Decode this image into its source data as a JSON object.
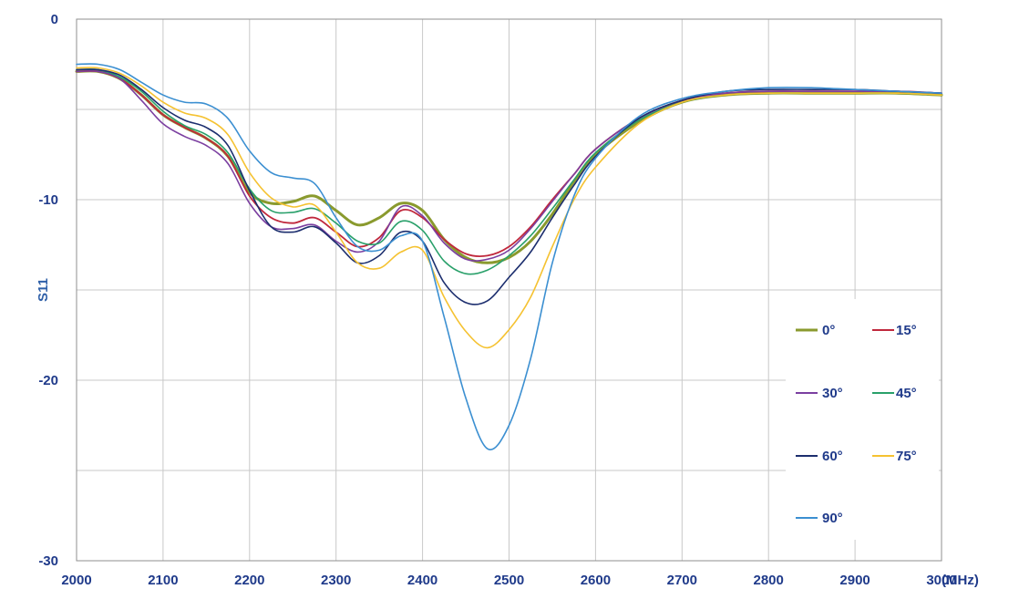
{
  "chart_data": {
    "type": "line",
    "xlabel": "(MHz)",
    "ylabel": "S11",
    "xlim": [
      2000,
      3000
    ],
    "ylim": [
      -30,
      0
    ],
    "x_ticks": [
      2000,
      2100,
      2200,
      2300,
      2400,
      2500,
      2600,
      2700,
      2800,
      2900,
      3000
    ],
    "y_ticks": [
      0,
      -10,
      -20,
      -30
    ],
    "grid": true,
    "legend_position": "right",
    "x": [
      2000,
      2025,
      2050,
      2075,
      2100,
      2125,
      2150,
      2175,
      2200,
      2225,
      2250,
      2275,
      2300,
      2325,
      2350,
      2375,
      2400,
      2425,
      2450,
      2475,
      2500,
      2525,
      2550,
      2575,
      2600,
      2650,
      2700,
      2750,
      2800,
      2850,
      2900,
      2950,
      3000
    ],
    "series": [
      {
        "name": "0°",
        "color": "#8a9a2e",
        "width": 3.0,
        "values": [
          -2.9,
          -2.9,
          -3.3,
          -4.2,
          -5.3,
          -6.0,
          -6.6,
          -7.6,
          -9.6,
          -10.2,
          -10.1,
          -9.8,
          -10.6,
          -11.4,
          -11.0,
          -10.2,
          -10.6,
          -12.2,
          -13.2,
          -13.5,
          -13.2,
          -12.3,
          -10.8,
          -9.0,
          -7.5,
          -5.7,
          -4.6,
          -4.2,
          -4.1,
          -4.1,
          -4.1,
          -4.1,
          -4.2
        ]
      },
      {
        "name": "15°",
        "color": "#c0283c",
        "width": 1.8,
        "values": [
          -2.9,
          -2.9,
          -3.3,
          -4.2,
          -5.3,
          -6.0,
          -6.6,
          -7.6,
          -9.8,
          -11.0,
          -11.3,
          -11.0,
          -11.8,
          -12.6,
          -12.1,
          -10.6,
          -11.0,
          -12.2,
          -13.0,
          -13.1,
          -12.6,
          -11.5,
          -10.0,
          -8.6,
          -7.2,
          -5.5,
          -4.5,
          -4.1,
          -4.0,
          -4.0,
          -4.0,
          -4.0,
          -4.1
        ]
      },
      {
        "name": "30°",
        "color": "#7b3fa0",
        "width": 1.6,
        "values": [
          -2.9,
          -2.9,
          -3.3,
          -4.5,
          -5.8,
          -6.5,
          -7.0,
          -8.0,
          -10.2,
          -11.5,
          -11.6,
          -11.4,
          -12.3,
          -12.9,
          -12.3,
          -10.4,
          -10.9,
          -12.4,
          -13.3,
          -13.3,
          -12.8,
          -11.6,
          -10.1,
          -8.6,
          -7.2,
          -5.5,
          -4.5,
          -4.1,
          -4.0,
          -4.0,
          -4.0,
          -4.0,
          -4.1
        ]
      },
      {
        "name": "45°",
        "color": "#29a06a",
        "width": 1.6,
        "values": [
          -2.8,
          -2.8,
          -3.2,
          -4.0,
          -5.1,
          -5.9,
          -6.4,
          -7.4,
          -9.4,
          -10.6,
          -10.7,
          -10.5,
          -11.3,
          -12.3,
          -12.4,
          -11.2,
          -11.7,
          -13.4,
          -14.1,
          -13.9,
          -13.1,
          -12.0,
          -10.5,
          -8.9,
          -7.4,
          -5.6,
          -4.6,
          -4.2,
          -4.1,
          -4.1,
          -4.1,
          -4.1,
          -4.2
        ]
      },
      {
        "name": "60°",
        "color": "#1c2e6e",
        "width": 1.6,
        "values": [
          -2.8,
          -2.8,
          -3.1,
          -3.9,
          -4.9,
          -5.6,
          -6.0,
          -7.0,
          -9.5,
          -11.5,
          -11.8,
          -11.5,
          -12.4,
          -13.5,
          -13.1,
          -11.8,
          -12.3,
          -14.6,
          -15.7,
          -15.6,
          -14.3,
          -12.9,
          -11.0,
          -9.2,
          -7.6,
          -5.5,
          -4.5,
          -4.0,
          -3.9,
          -3.9,
          -3.9,
          -4.0,
          -4.1
        ]
      },
      {
        "name": "75°",
        "color": "#f5c231",
        "width": 1.6,
        "values": [
          -2.7,
          -2.7,
          -3.0,
          -3.7,
          -4.6,
          -5.2,
          -5.5,
          -6.4,
          -8.5,
          -9.9,
          -10.4,
          -10.3,
          -11.8,
          -13.5,
          -13.8,
          -12.9,
          -12.8,
          -15.4,
          -17.3,
          -18.2,
          -17.2,
          -15.4,
          -12.6,
          -10.0,
          -8.2,
          -5.8,
          -4.6,
          -4.2,
          -4.1,
          -4.1,
          -4.1,
          -4.1,
          -4.2
        ]
      },
      {
        "name": "90°",
        "color": "#3b8fd1",
        "width": 1.6,
        "values": [
          -2.5,
          -2.5,
          -2.8,
          -3.5,
          -4.2,
          -4.6,
          -4.7,
          -5.5,
          -7.3,
          -8.5,
          -8.8,
          -9.1,
          -11.0,
          -12.6,
          -12.8,
          -12.0,
          -12.3,
          -16.5,
          -21.0,
          -23.8,
          -22.5,
          -18.8,
          -13.5,
          -9.8,
          -7.7,
          -5.4,
          -4.4,
          -4.0,
          -3.8,
          -3.8,
          -3.9,
          -4.0,
          -4.1
        ]
      }
    ]
  }
}
